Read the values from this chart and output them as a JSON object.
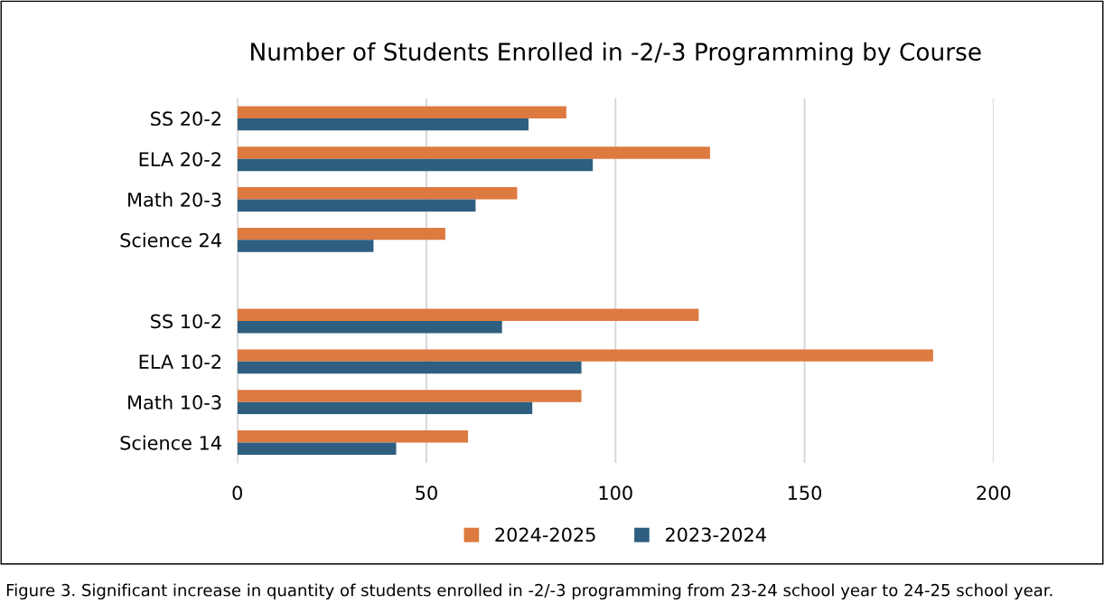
{
  "chart_data": {
    "type": "bar",
    "orientation": "horizontal",
    "title": "Number of Students Enrolled in -2/-3 Programming by Course",
    "categories": [
      "SS 20-2",
      "ELA 20-2",
      "Math 20-3",
      "Science 24",
      null,
      "SS 10-2",
      "ELA 10-2",
      "Math 10-3",
      "Science 14"
    ],
    "series": [
      {
        "name": "2024-2025",
        "color": "#dd7a40",
        "values": [
          87,
          125,
          74,
          55,
          null,
          122,
          184,
          91,
          61
        ]
      },
      {
        "name": "2023-2024",
        "color": "#2e5f80",
        "values": [
          77,
          94,
          63,
          36,
          null,
          70,
          91,
          78,
          42
        ]
      }
    ],
    "xlim": [
      0,
      200
    ],
    "xticks": [
      0,
      50,
      100,
      150,
      200
    ],
    "grid": "x",
    "legend": "bottom",
    "annotations": [
      "Figure 3. Significant increase in quantity of students enrolled in -2/-3 programming from 23-24 school year to 24-25 school year."
    ]
  }
}
